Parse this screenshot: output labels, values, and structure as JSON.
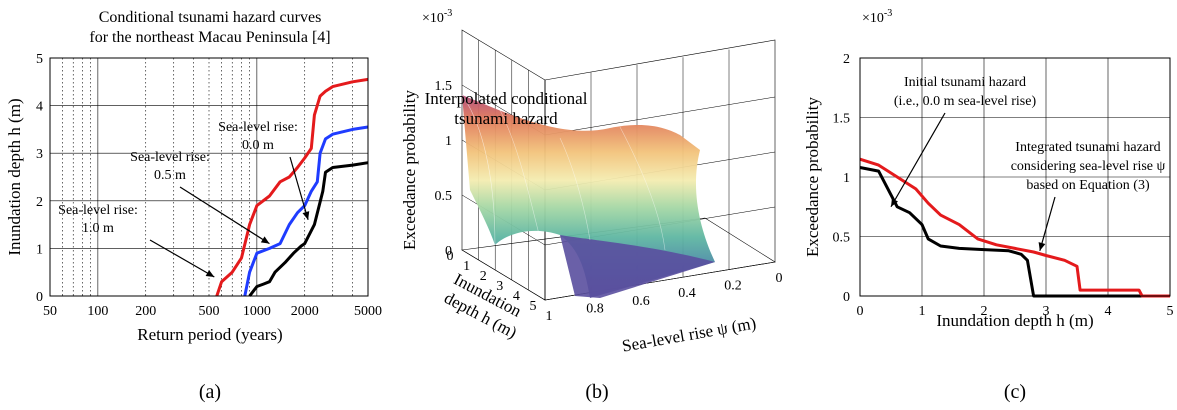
{
  "chart_data": [
    {
      "panel": "(a)",
      "type": "line",
      "title": [
        "Conditional tsunami hazard curves",
        "for the northeast Macau Peninsula [4]"
      ],
      "xlabel": "Return period (years)",
      "ylabel": "Inundation depth h (m)",
      "xscale": "log",
      "xlim": [
        50,
        5000
      ],
      "ylim": [
        0,
        5
      ],
      "xticks": [
        "50",
        "100",
        "200",
        "500",
        "1000",
        "2000",
        "5000"
      ],
      "yticks": [
        "0",
        "1",
        "2",
        "3",
        "4",
        "5"
      ],
      "series": [
        {
          "color": "#e41a1c",
          "x": [
            560,
            600,
            700,
            800,
            900,
            1000,
            1200,
            1400,
            1600,
            1800,
            2000,
            2200,
            2300,
            2500,
            2700,
            3000,
            4000,
            5000
          ],
          "y": [
            0,
            0.3,
            0.5,
            0.8,
            1.5,
            1.9,
            2.1,
            2.4,
            2.5,
            2.7,
            2.9,
            3.1,
            3.8,
            4.2,
            4.3,
            4.4,
            4.5,
            4.55
          ]
        },
        {
          "color": "#1f3cff",
          "x": [
            840,
            900,
            1000,
            1200,
            1400,
            1600,
            1800,
            2000,
            2200,
            2400,
            2500,
            2700,
            3000,
            4000,
            5000
          ],
          "y": [
            0,
            0.5,
            0.9,
            1.0,
            1.1,
            1.5,
            1.75,
            1.9,
            2.2,
            2.4,
            3.0,
            3.3,
            3.4,
            3.5,
            3.55
          ]
        },
        {
          "color": "#000000",
          "x": [
            900,
            950,
            1000,
            1100,
            1200,
            1300,
            1500,
            1700,
            1900,
            2000,
            2300,
            2600,
            2700,
            3000,
            4000,
            5000
          ],
          "y": [
            0,
            0.1,
            0.2,
            0.25,
            0.3,
            0.5,
            0.7,
            0.9,
            1.05,
            1.1,
            1.5,
            2.2,
            2.6,
            2.7,
            2.75,
            2.8
          ]
        }
      ],
      "annotations": [
        {
          "lines": [
            "Sea-level rise:",
            "0.0 m"
          ],
          "arrow_to_x": 2100,
          "arrow_to_y": 1.6
        },
        {
          "lines": [
            "Sea-level rise:",
            "0.5 m"
          ],
          "arrow_to_x": 1200,
          "arrow_to_y": 1.1
        },
        {
          "lines": [
            "Sea-level rise:",
            "1.0 m"
          ],
          "arrow_to_x": 540,
          "arrow_to_y": 0.4
        }
      ]
    },
    {
      "panel": "(b)",
      "type": "surface",
      "title": [
        "Interpolated conditional",
        "tsunami hazard"
      ],
      "xlabel": "Sea-level rise ψ (m)",
      "ylabel": [
        "Inundation",
        "depth h (m)"
      ],
      "zlabel": "Exceedance probability",
      "z_multiplier": "×10-3",
      "psi_ticks": [
        "1",
        "0.8",
        "0.6",
        "0.4",
        "0.2",
        "0"
      ],
      "h_ticks": [
        "0",
        "1",
        "2",
        "3",
        "4",
        "5"
      ],
      "z_ticks": [
        "0",
        "0.5",
        "1",
        "1.5"
      ],
      "zlim": [
        0,
        2
      ]
    },
    {
      "panel": "(c)",
      "type": "line",
      "xlabel": "Inundation depth h (m)",
      "ylabel": "Exceedance probability",
      "y_multiplier": "×10-3",
      "xlim": [
        0,
        5
      ],
      "ylim": [
        0,
        2
      ],
      "xticks": [
        "0",
        "1",
        "2",
        "3",
        "4",
        "5"
      ],
      "yticks": [
        "0",
        "0.5",
        "1",
        "1.5",
        "2"
      ],
      "series": [
        {
          "color": "#000000",
          "x": [
            0,
            0.3,
            0.45,
            0.6,
            0.8,
            1.0,
            1.1,
            1.3,
            1.6,
            2.0,
            2.4,
            2.6,
            2.7,
            2.75,
            2.8,
            5.0
          ],
          "y": [
            1.08,
            1.05,
            0.9,
            0.75,
            0.7,
            0.6,
            0.48,
            0.42,
            0.4,
            0.39,
            0.38,
            0.35,
            0.3,
            0.15,
            0,
            0
          ]
        },
        {
          "color": "#e41a1c",
          "x": [
            0,
            0.3,
            0.6,
            0.9,
            1.1,
            1.3,
            1.6,
            1.9,
            2.2,
            2.5,
            2.8,
            3.0,
            3.3,
            3.5,
            3.55,
            4.5,
            4.55,
            5.0
          ],
          "y": [
            1.15,
            1.1,
            1.0,
            0.9,
            0.78,
            0.68,
            0.6,
            0.48,
            0.43,
            0.4,
            0.37,
            0.34,
            0.3,
            0.25,
            0.05,
            0.05,
            0,
            0
          ]
        }
      ],
      "annotations": [
        {
          "lines": [
            "Initial tsunami hazard",
            "(i.e., 0.0 m sea-level rise)"
          ],
          "arrow_to_x": 0.5,
          "arrow_to_y": 0.75
        },
        {
          "lines": [
            "Integrated tsunami hazard",
            "considering sea-level rise ψ",
            "based on Equation (3)"
          ],
          "arrow_to_x": 2.9,
          "arrow_to_y": 0.38
        }
      ]
    }
  ]
}
